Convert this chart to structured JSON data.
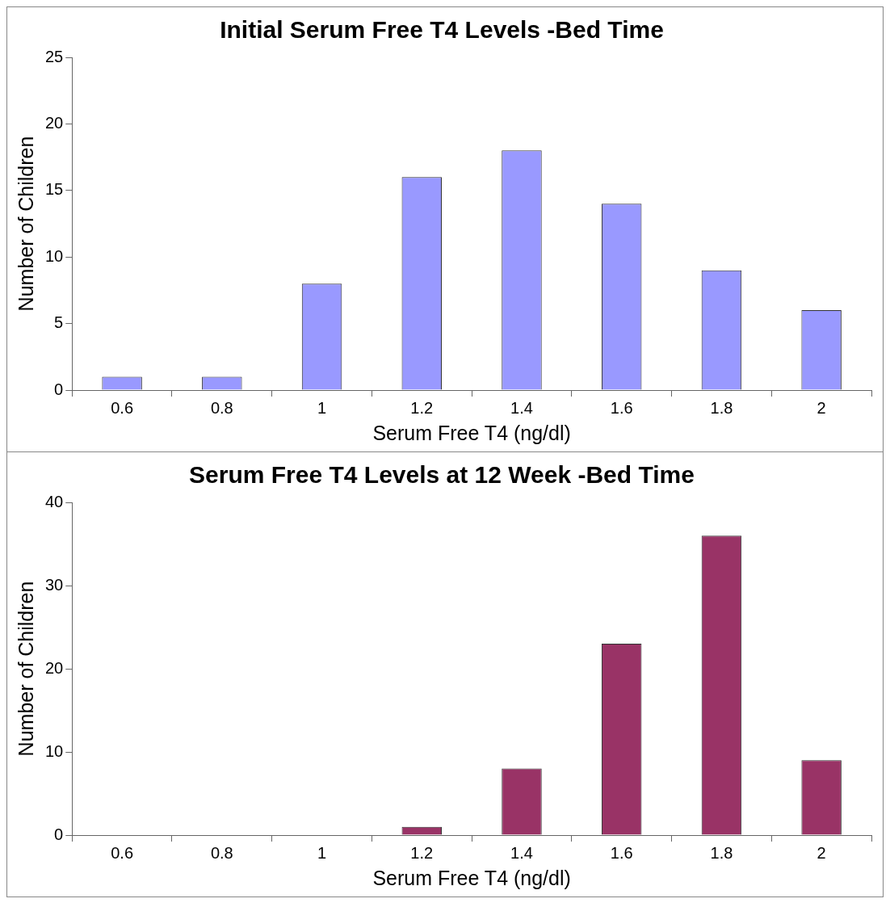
{
  "chart_data": [
    {
      "type": "bar",
      "title": "Initial Serum Free T4 Levels -Bed Time",
      "xlabel": "Serum Free T4 (ng/dl)",
      "ylabel": "Number of Children",
      "categories": [
        "0.6",
        "0.8",
        "1",
        "1.2",
        "1.4",
        "1.6",
        "1.8",
        "2"
      ],
      "values": [
        1,
        1,
        8,
        16,
        18,
        14,
        9,
        6
      ],
      "color": "#9999ff",
      "ylim": [
        0,
        25
      ],
      "yticks": [
        0,
        5,
        10,
        15,
        20,
        25
      ]
    },
    {
      "type": "bar",
      "title": "Serum Free T4 Levels at 12 Week -Bed Time",
      "xlabel": "Serum Free T4 (ng/dl)",
      "ylabel": "Number of Children",
      "categories": [
        "0.6",
        "0.8",
        "1",
        "1.2",
        "1.4",
        "1.6",
        "1.8",
        "2"
      ],
      "values": [
        0,
        0,
        0,
        1,
        8,
        23,
        36,
        9
      ],
      "color": "#993366",
      "ylim": [
        0,
        40
      ],
      "yticks": [
        0,
        10,
        20,
        30,
        40
      ]
    }
  ]
}
